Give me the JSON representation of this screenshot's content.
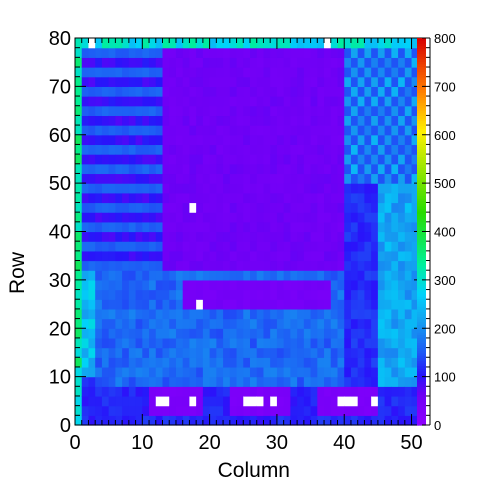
{
  "chart_data": {
    "type": "heatmap",
    "title": "",
    "xlabel": "Column",
    "ylabel": "Row",
    "xlim": [
      0,
      52
    ],
    "ylim": [
      0,
      80
    ],
    "x_ticks": [
      "0",
      "10",
      "20",
      "30",
      "40",
      "50"
    ],
    "y_ticks": [
      "0",
      "10",
      "20",
      "30",
      "40",
      "50",
      "60",
      "70",
      "80"
    ],
    "colorbar": {
      "range": [
        0,
        800
      ],
      "ticks": [
        "0",
        "100",
        "200",
        "300",
        "400",
        "500",
        "600",
        "700",
        "800"
      ]
    },
    "cell_size": [
      1,
      2
    ],
    "grid": false,
    "regions": [
      {
        "name": "background",
        "x": [
          0,
          52
        ],
        "y": [
          0,
          80
        ],
        "value": 115
      },
      {
        "name": "upper-left block",
        "x": [
          1,
          13
        ],
        "y": [
          32,
          80
        ],
        "value": 95,
        "striped": true
      },
      {
        "name": "upper-center block",
        "x": [
          13,
          40
        ],
        "y": [
          32,
          80
        ],
        "value": 60
      },
      {
        "name": "mid-right band",
        "x": [
          40,
          45
        ],
        "y": [
          8,
          50
        ],
        "value": 120
      },
      {
        "name": "upper-right block",
        "x": [
          40,
          51
        ],
        "y": [
          50,
          80
        ],
        "value": 210,
        "checkered": true
      },
      {
        "name": "right column",
        "x": [
          45,
          51
        ],
        "y": [
          8,
          50
        ],
        "value": 225
      },
      {
        "name": "left strip",
        "x": [
          1,
          3
        ],
        "y": [
          10,
          32
        ],
        "value": 250
      },
      {
        "name": "lower band",
        "x": [
          3,
          40
        ],
        "y": [
          8,
          32
        ],
        "value": 165
      },
      {
        "name": "low-value bar",
        "x": [
          16,
          38
        ],
        "y": [
          24,
          30
        ],
        "value": 50
      },
      {
        "name": "low-value island 1",
        "x": [
          11,
          19
        ],
        "y": [
          3,
          9
        ],
        "value": 40
      },
      {
        "name": "low-value island 2",
        "x": [
          23,
          32
        ],
        "y": [
          3,
          9
        ],
        "value": 40
      },
      {
        "name": "low-value island 3",
        "x": [
          36,
          45
        ],
        "y": [
          3,
          9
        ],
        "value": 40
      },
      {
        "name": "outer edge",
        "x": [
          0,
          1
        ],
        "y": [
          0,
          80
        ],
        "value": 330
      },
      {
        "name": "top edge",
        "x": [
          0,
          52
        ],
        "y": [
          79,
          80
        ],
        "value": 290
      },
      {
        "name": "right edge",
        "x": [
          51,
          52
        ],
        "y": [
          0,
          80
        ],
        "value": 480
      }
    ],
    "zero_cells": [
      [
        2,
        79
      ],
      [
        17,
        45
      ],
      [
        18,
        25
      ],
      [
        13,
        5
      ],
      [
        12,
        4
      ],
      [
        17,
        4
      ],
      [
        25,
        4
      ],
      [
        26,
        5
      ],
      [
        27,
        5
      ],
      [
        29,
        4
      ],
      [
        39,
        4
      ],
      [
        40,
        5
      ],
      [
        41,
        5
      ],
      [
        44,
        4
      ],
      [
        37,
        79
      ]
    ]
  }
}
